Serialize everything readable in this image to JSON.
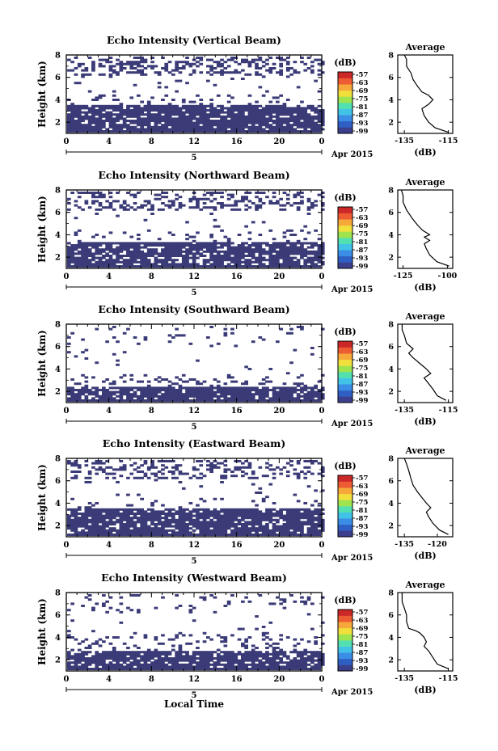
{
  "figure": {
    "xlabel": "Local Time",
    "ylabel": "Height (km)",
    "date_label": "5",
    "month_year": "Apr 2015",
    "x_ticks": [
      "0",
      "4",
      "8",
      "12",
      "16",
      "20",
      "0"
    ],
    "y_ticks": [
      "2",
      "4",
      "6",
      "8"
    ],
    "colorbar_unit": "(dB)",
    "colorbar_ticks": [
      "-57",
      "-63",
      "-69",
      "-75",
      "-81",
      "-87",
      "-93",
      "-99"
    ],
    "colorbar_colors": [
      "#3b3f8c",
      "#2f5fc4",
      "#3b8ee6",
      "#41c3e8",
      "#52e0b0",
      "#9fe44e",
      "#f1e03c",
      "#f6a93a",
      "#ee5c33",
      "#cc2828"
    ],
    "echo_color": "#3b3b78",
    "average_title": "Average",
    "average_xlabel": "(dB)"
  },
  "chart_data": [
    {
      "type": "heatmap",
      "title": "Echo Intensity (Vertical Beam)",
      "xlabel": "",
      "ylabel": "Height (km)",
      "xlim": [
        0,
        24
      ],
      "ylim": [
        1,
        8
      ],
      "layers": [
        {
          "y": [
            1.3,
            3.6
          ],
          "density": 0.88
        },
        {
          "y": [
            3.6,
            4.5
          ],
          "density": 0.12
        },
        {
          "y": [
            4.5,
            6.3
          ],
          "density": 0.03
        },
        {
          "y": [
            6.3,
            8.0
          ],
          "density": 0.35
        }
      ],
      "average": {
        "xticks": [
          "-135",
          "-115"
        ],
        "xlim": [
          -138,
          -113
        ],
        "ylim": [
          1,
          8
        ],
        "yticks": [
          "2",
          "4",
          "6",
          "8"
        ],
        "profile": [
          [
            -115,
            1.1
          ],
          [
            -121,
            1.5
          ],
          [
            -124,
            2.0
          ],
          [
            -126,
            2.6
          ],
          [
            -127,
            3.2
          ],
          [
            -124,
            3.6
          ],
          [
            -122,
            4.0
          ],
          [
            -124,
            4.4
          ],
          [
            -127,
            4.7
          ],
          [
            -129,
            5.2
          ],
          [
            -131,
            5.8
          ],
          [
            -132,
            6.4
          ],
          [
            -134,
            7.0
          ],
          [
            -134,
            7.6
          ],
          [
            -135,
            8.0
          ]
        ]
      }
    },
    {
      "type": "heatmap",
      "title": "Echo Intensity (Northward Beam)",
      "xlabel": "",
      "ylabel": "Height (km)",
      "xlim": [
        0,
        24
      ],
      "ylim": [
        1,
        8
      ],
      "layers": [
        {
          "y": [
            1.3,
            3.5
          ],
          "density": 0.8
        },
        {
          "y": [
            3.5,
            4.6
          ],
          "density": 0.1
        },
        {
          "y": [
            4.6,
            6.3
          ],
          "density": 0.03
        },
        {
          "y": [
            6.3,
            8.0
          ],
          "density": 0.3
        }
      ],
      "average": {
        "xticks": [
          "-125",
          "-100"
        ],
        "xlim": [
          -128,
          -97
        ],
        "ylim": [
          1,
          8
        ],
        "yticks": [
          "2",
          "4",
          "6",
          "8"
        ],
        "profile": [
          [
            -99,
            1.2
          ],
          [
            -106,
            1.6
          ],
          [
            -110,
            2.2
          ],
          [
            -112,
            2.8
          ],
          [
            -113,
            3.2
          ],
          [
            -110,
            3.5
          ],
          [
            -113,
            3.8
          ],
          [
            -110,
            4.0
          ],
          [
            -114,
            4.4
          ],
          [
            -117,
            4.9
          ],
          [
            -120,
            5.5
          ],
          [
            -123,
            6.2
          ],
          [
            -125,
            6.9
          ],
          [
            -125,
            7.5
          ],
          [
            -126,
            8.0
          ]
        ]
      }
    },
    {
      "type": "heatmap",
      "title": "Echo Intensity (Southward Beam)",
      "xlabel": "",
      "ylabel": "Height (km)",
      "xlim": [
        0,
        24
      ],
      "ylim": [
        1,
        8
      ],
      "layers": [
        {
          "y": [
            1.3,
            2.6
          ],
          "density": 0.82
        },
        {
          "y": [
            2.6,
            3.6
          ],
          "density": 0.18
        },
        {
          "y": [
            3.6,
            6.3
          ],
          "density": 0.02
        },
        {
          "y": [
            6.3,
            8.0
          ],
          "density": 0.06
        }
      ],
      "average": {
        "xticks": [
          "-135",
          "-115"
        ],
        "xlim": [
          -138,
          -113
        ],
        "ylim": [
          1,
          8
        ],
        "yticks": [
          "2",
          "4",
          "6",
          "8"
        ],
        "profile": [
          [
            -116,
            1.2
          ],
          [
            -120,
            1.6
          ],
          [
            -122,
            2.2
          ],
          [
            -124,
            2.7
          ],
          [
            -126,
            3.2
          ],
          [
            -123,
            3.6
          ],
          [
            -125,
            4.0
          ],
          [
            -128,
            4.5
          ],
          [
            -131,
            5.0
          ],
          [
            -133,
            5.4
          ],
          [
            -131,
            5.8
          ],
          [
            -134,
            6.3
          ],
          [
            -135,
            7.0
          ],
          [
            -136,
            7.5
          ],
          [
            -136,
            8.0
          ]
        ]
      }
    },
    {
      "type": "heatmap",
      "title": "Echo Intensity (Eastward Beam)",
      "xlabel": "",
      "ylabel": "Height (km)",
      "xlim": [
        0,
        24
      ],
      "ylim": [
        1,
        8
      ],
      "layers": [
        {
          "y": [
            1.3,
            3.6
          ],
          "density": 0.85
        },
        {
          "y": [
            3.6,
            4.6
          ],
          "density": 0.1
        },
        {
          "y": [
            4.6,
            6.3
          ],
          "density": 0.03
        },
        {
          "y": [
            6.3,
            8.0
          ],
          "density": 0.28
        }
      ],
      "average": {
        "xticks": [
          "-135",
          "-120"
        ],
        "xlim": [
          -138,
          -113
        ],
        "ylim": [
          1,
          8
        ],
        "yticks": [
          "2",
          "4",
          "6",
          "8"
        ],
        "profile": [
          [
            -115,
            1.2
          ],
          [
            -119,
            1.6
          ],
          [
            -122,
            2.2
          ],
          [
            -124,
            2.8
          ],
          [
            -125,
            3.2
          ],
          [
            -123,
            3.6
          ],
          [
            -125,
            4.0
          ],
          [
            -127,
            4.5
          ],
          [
            -129,
            5.0
          ],
          [
            -131,
            5.6
          ],
          [
            -132,
            6.2
          ],
          [
            -133,
            6.9
          ],
          [
            -134,
            7.5
          ],
          [
            -135,
            8.0
          ]
        ]
      }
    },
    {
      "type": "heatmap",
      "title": "Echo Intensity (Westward Beam)",
      "xlabel": "Local Time",
      "ylabel": "Height (km)",
      "xlim": [
        0,
        24
      ],
      "ylim": [
        1,
        8
      ],
      "layers": [
        {
          "y": [
            1.3,
            2.9
          ],
          "density": 0.82
        },
        {
          "y": [
            2.9,
            4.6
          ],
          "density": 0.12
        },
        {
          "y": [
            4.6,
            6.3
          ],
          "density": 0.02
        },
        {
          "y": [
            6.3,
            8.0
          ],
          "density": 0.1
        }
      ],
      "average": {
        "xticks": [
          "-135",
          "-115"
        ],
        "xlim": [
          -138,
          -113
        ],
        "ylim": [
          1,
          8
        ],
        "yticks": [
          "2",
          "4",
          "6",
          "8"
        ],
        "profile": [
          [
            -115,
            1.2
          ],
          [
            -120,
            1.6
          ],
          [
            -122,
            2.2
          ],
          [
            -124,
            2.8
          ],
          [
            -126,
            3.2
          ],
          [
            -125,
            3.6
          ],
          [
            -126,
            4.0
          ],
          [
            -128,
            4.4
          ],
          [
            -130,
            4.6
          ],
          [
            -133,
            4.8
          ],
          [
            -134,
            5.4
          ],
          [
            -134,
            6.0
          ],
          [
            -135,
            6.6
          ],
          [
            -136,
            7.2
          ],
          [
            -136,
            8.0
          ]
        ]
      }
    }
  ]
}
